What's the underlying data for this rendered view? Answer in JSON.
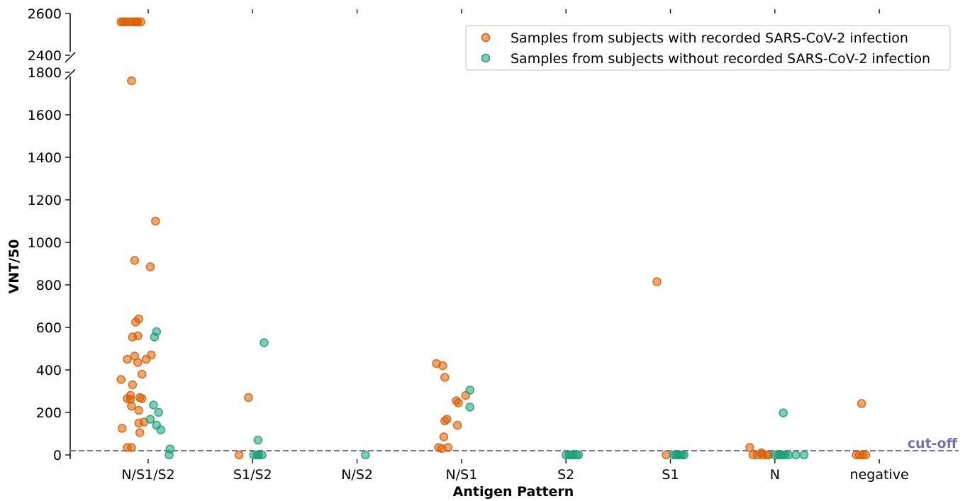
{
  "chart_data": {
    "type": "scatter",
    "xlabel": "Antigen Pattern",
    "ylabel": "VNT/50",
    "categories": [
      "N/S1/S2",
      "S1/S2",
      "N/S2",
      "N/S1",
      "S2",
      "S1",
      "N",
      "negative"
    ],
    "y_broken_axis": {
      "lower_range": [
        0,
        1800
      ],
      "upper_range": [
        2400,
        2600
      ],
      "lower_ticks": [
        0,
        200,
        400,
        600,
        800,
        1000,
        1200,
        1400,
        1600,
        1800
      ],
      "upper_ticks": [
        2400,
        2600
      ]
    },
    "cutoff": {
      "value": 20,
      "label": "cut-off",
      "color": "#7570b3"
    },
    "legend_position": "top-right",
    "series": [
      {
        "name": "Samples from subjects with recorded SARS-CoV-2 infection",
        "color": "#d95f02",
        "points": [
          {
            "x": "N/S1/S2",
            "y": 2560,
            "j": -0.26
          },
          {
            "x": "N/S1/S2",
            "y": 2560,
            "j": -0.24
          },
          {
            "x": "N/S1/S2",
            "y": 2560,
            "j": -0.22
          },
          {
            "x": "N/S1/S2",
            "y": 2560,
            "j": -0.19
          },
          {
            "x": "N/S1/S2",
            "y": 2560,
            "j": -0.16
          },
          {
            "x": "N/S1/S2",
            "y": 2560,
            "j": -0.13
          },
          {
            "x": "N/S1/S2",
            "y": 2560,
            "j": -0.11
          },
          {
            "x": "N/S1/S2",
            "y": 2560,
            "j": -0.1
          },
          {
            "x": "N/S1/S2",
            "y": 2560,
            "j": -0.07
          },
          {
            "x": "N/S1/S2",
            "y": 1760,
            "j": -0.16
          },
          {
            "x": "N/S1/S2",
            "y": 1100,
            "j": 0.07
          },
          {
            "x": "N/S1/S2",
            "y": 915,
            "j": -0.13
          },
          {
            "x": "N/S1/S2",
            "y": 885,
            "j": 0.02
          },
          {
            "x": "N/S1/S2",
            "y": 640,
            "j": -0.09
          },
          {
            "x": "N/S1/S2",
            "y": 625,
            "j": -0.12
          },
          {
            "x": "N/S1/S2",
            "y": 560,
            "j": -0.1
          },
          {
            "x": "N/S1/S2",
            "y": 555,
            "j": -0.15
          },
          {
            "x": "N/S1/S2",
            "y": 470,
            "j": 0.03
          },
          {
            "x": "N/S1/S2",
            "y": 465,
            "j": -0.13
          },
          {
            "x": "N/S1/S2",
            "y": 450,
            "j": -0.2
          },
          {
            "x": "N/S1/S2",
            "y": 450,
            "j": -0.02
          },
          {
            "x": "N/S1/S2",
            "y": 435,
            "j": -0.1
          },
          {
            "x": "N/S1/S2",
            "y": 380,
            "j": -0.06
          },
          {
            "x": "N/S1/S2",
            "y": 355,
            "j": -0.26
          },
          {
            "x": "N/S1/S2",
            "y": 330,
            "j": -0.15
          },
          {
            "x": "N/S1/S2",
            "y": 280,
            "j": -0.17
          },
          {
            "x": "N/S1/S2",
            "y": 270,
            "j": -0.08
          },
          {
            "x": "N/S1/S2",
            "y": 265,
            "j": -0.2
          },
          {
            "x": "N/S1/S2",
            "y": 265,
            "j": -0.06
          },
          {
            "x": "N/S1/S2",
            "y": 262,
            "j": -0.17
          },
          {
            "x": "N/S1/S2",
            "y": 230,
            "j": -0.16
          },
          {
            "x": "N/S1/S2",
            "y": 210,
            "j": -0.09
          },
          {
            "x": "N/S1/S2",
            "y": 155,
            "j": -0.04
          },
          {
            "x": "N/S1/S2",
            "y": 150,
            "j": -0.09
          },
          {
            "x": "N/S1/S2",
            "y": 125,
            "j": -0.25
          },
          {
            "x": "N/S1/S2",
            "y": 105,
            "j": -0.08
          },
          {
            "x": "N/S1/S2",
            "y": 35,
            "j": -0.2
          },
          {
            "x": "N/S1/S2",
            "y": 35,
            "j": -0.16
          },
          {
            "x": "S1/S2",
            "y": 270,
            "j": -0.04
          },
          {
            "x": "S1/S2",
            "y": 0,
            "j": -0.13
          },
          {
            "x": "N/S1",
            "y": 430,
            "j": -0.24
          },
          {
            "x": "N/S1",
            "y": 420,
            "j": -0.18
          },
          {
            "x": "N/S1",
            "y": 365,
            "j": -0.16
          },
          {
            "x": "N/S1",
            "y": 280,
            "j": 0.04
          },
          {
            "x": "N/S1",
            "y": 255,
            "j": -0.05
          },
          {
            "x": "N/S1",
            "y": 245,
            "j": -0.03
          },
          {
            "x": "N/S1",
            "y": 168,
            "j": -0.14
          },
          {
            "x": "N/S1",
            "y": 160,
            "j": -0.16
          },
          {
            "x": "N/S1",
            "y": 140,
            "j": -0.04
          },
          {
            "x": "N/S1",
            "y": 85,
            "j": -0.17
          },
          {
            "x": "N/S1",
            "y": 35,
            "j": -0.22
          },
          {
            "x": "N/S1",
            "y": 35,
            "j": -0.13
          },
          {
            "x": "N/S1",
            "y": 30,
            "j": -0.19
          },
          {
            "x": "S1",
            "y": 815,
            "j": -0.13
          },
          {
            "x": "S1",
            "y": 0,
            "j": -0.04
          },
          {
            "x": "N",
            "y": 35,
            "j": -0.24
          },
          {
            "x": "N",
            "y": 10,
            "j": -0.13
          },
          {
            "x": "N",
            "y": 0,
            "j": -0.21
          },
          {
            "x": "N",
            "y": 0,
            "j": -0.17
          },
          {
            "x": "N",
            "y": 0,
            "j": -0.12
          },
          {
            "x": "N",
            "y": 0,
            "j": -0.08
          },
          {
            "x": "N",
            "y": 0,
            "j": -0.06
          },
          {
            "x": "negative",
            "y": 242,
            "j": -0.17
          },
          {
            "x": "negative",
            "y": 0,
            "j": -0.22
          },
          {
            "x": "negative",
            "y": 0,
            "j": -0.19
          },
          {
            "x": "negative",
            "y": 0,
            "j": -0.16
          },
          {
            "x": "negative",
            "y": 0,
            "j": -0.13
          }
        ]
      },
      {
        "name": "Samples from subjects without recorded SARS-CoV-2 infection",
        "color": "#1b9e77",
        "points": [
          {
            "x": "N/S1/S2",
            "y": 580,
            "j": 0.08
          },
          {
            "x": "N/S1/S2",
            "y": 555,
            "j": 0.06
          },
          {
            "x": "N/S1/S2",
            "y": 235,
            "j": 0.05
          },
          {
            "x": "N/S1/S2",
            "y": 200,
            "j": 0.1
          },
          {
            "x": "N/S1/S2",
            "y": 168,
            "j": 0.02
          },
          {
            "x": "N/S1/S2",
            "y": 140,
            "j": 0.08
          },
          {
            "x": "N/S1/S2",
            "y": 118,
            "j": 0.12
          },
          {
            "x": "N/S1/S2",
            "y": 28,
            "j": 0.21
          },
          {
            "x": "N/S1/S2",
            "y": 0,
            "j": 0.2
          },
          {
            "x": "S1/S2",
            "y": 528,
            "j": 0.11
          },
          {
            "x": "S1/S2",
            "y": 70,
            "j": 0.05
          },
          {
            "x": "S1/S2",
            "y": 0,
            "j": 0.01
          },
          {
            "x": "S1/S2",
            "y": 0,
            "j": 0.04
          },
          {
            "x": "S1/S2",
            "y": 0,
            "j": 0.06
          },
          {
            "x": "S1/S2",
            "y": 0,
            "j": 0.09
          },
          {
            "x": "N/S2",
            "y": 0,
            "j": 0.08
          },
          {
            "x": "N/S1",
            "y": 305,
            "j": 0.08
          },
          {
            "x": "N/S1",
            "y": 225,
            "j": 0.08
          },
          {
            "x": "S2",
            "y": 0,
            "j": 0.0
          },
          {
            "x": "S2",
            "y": 0,
            "j": 0.03
          },
          {
            "x": "S2",
            "y": 0,
            "j": 0.05
          },
          {
            "x": "S2",
            "y": 0,
            "j": 0.07
          },
          {
            "x": "S2",
            "y": 0,
            "j": 0.1
          },
          {
            "x": "S2",
            "y": 0,
            "j": 0.12
          },
          {
            "x": "S1",
            "y": 0,
            "j": 0.03
          },
          {
            "x": "S1",
            "y": 0,
            "j": 0.05
          },
          {
            "x": "S1",
            "y": 0,
            "j": 0.07
          },
          {
            "x": "S1",
            "y": 0,
            "j": 0.09
          },
          {
            "x": "S1",
            "y": 0,
            "j": 0.11
          },
          {
            "x": "S1",
            "y": 0,
            "j": 0.13
          },
          {
            "x": "N",
            "y": 198,
            "j": 0.08
          },
          {
            "x": "N",
            "y": 0,
            "j": 0.0
          },
          {
            "x": "N",
            "y": 0,
            "j": 0.03
          },
          {
            "x": "N",
            "y": 0,
            "j": 0.05
          },
          {
            "x": "N",
            "y": 0,
            "j": 0.08
          },
          {
            "x": "N",
            "y": 0,
            "j": 0.1
          },
          {
            "x": "N",
            "y": 0,
            "j": 0.13
          },
          {
            "x": "N",
            "y": 0,
            "j": 0.2
          },
          {
            "x": "N",
            "y": 0,
            "j": 0.28
          }
        ]
      }
    ]
  }
}
